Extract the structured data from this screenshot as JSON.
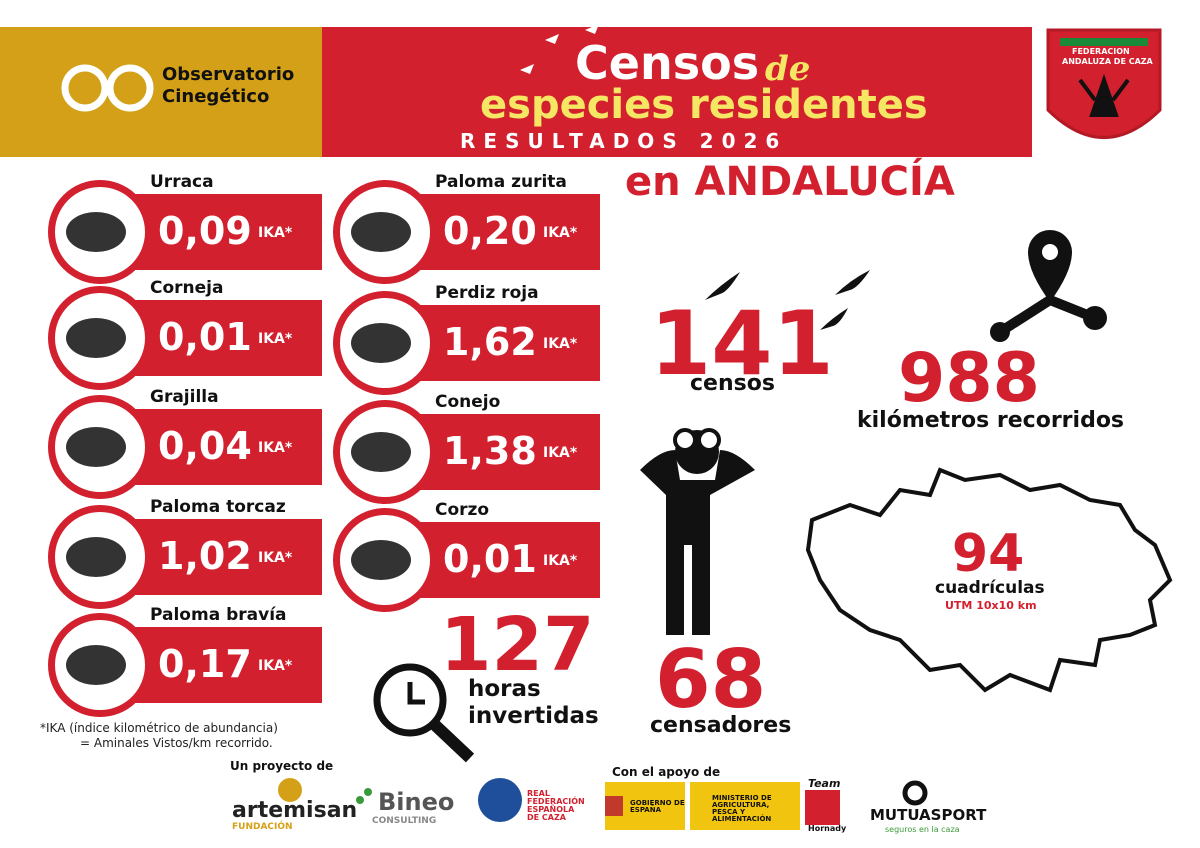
{
  "header": {
    "logo_text": [
      "Observatorio",
      "Cinegético"
    ],
    "title_1": "Censos",
    "title_de": "de",
    "title_2": "especies residentes",
    "subtitle": "RESULTADOS 2026",
    "region": "en ANDALUCÍA",
    "federation": [
      "FEDERACION",
      "ANDALUZA DE CAZA"
    ]
  },
  "species": [
    {
      "name": "Urraca",
      "value": "0,09",
      "unit": "IKA*"
    },
    {
      "name": "Corneja",
      "value": "0,01",
      "unit": "IKA*"
    },
    {
      "name": "Grajilla",
      "value": "0,04",
      "unit": "IKA*"
    },
    {
      "name": "Paloma torcaz",
      "value": "1,02",
      "unit": "IKA*"
    },
    {
      "name": "Paloma bravía",
      "value": "0,17",
      "unit": "IKA*"
    },
    {
      "name": "Paloma zurita",
      "value": "0,20",
      "unit": "IKA*"
    },
    {
      "name": "Perdiz roja",
      "value": "1,62",
      "unit": "IKA*"
    },
    {
      "name": "Conejo",
      "value": "1,38",
      "unit": "IKA*"
    },
    {
      "name": "Corzo",
      "value": "0,01",
      "unit": "IKA*"
    }
  ],
  "stats": {
    "censos": {
      "value": "141",
      "label": "censos"
    },
    "km": {
      "value": "988",
      "label": "kilómetros recorridos"
    },
    "horas": {
      "value": "127",
      "label": [
        "horas",
        "invertidas"
      ]
    },
    "censadores": {
      "value": "68",
      "label": "censadores"
    },
    "cuadriculas": {
      "value": "94",
      "label": "cuadrículas",
      "note": "UTM 10x10 km"
    }
  },
  "footnote": [
    "*IKA (índice kilométrico de abundancia)",
    "= Aminales Vistos/km recorrido."
  ],
  "footer": {
    "project_label": "Un proyecto de",
    "support_label": "Con el apoyo de",
    "logos": [
      "artemisan",
      "FUNDACIÓN",
      "Bineo",
      "CONSULTING",
      "REAL FEDERACIÓN ESPAÑOLA DE CAZA",
      "GOBIERNO DE ESPAÑA",
      "MINISTERIO DE AGRICULTURA, PESCA Y ALIMENTACIÓN",
      "Team",
      "Hornady",
      "MUTUASPORT",
      "seguros en la caza"
    ]
  }
}
